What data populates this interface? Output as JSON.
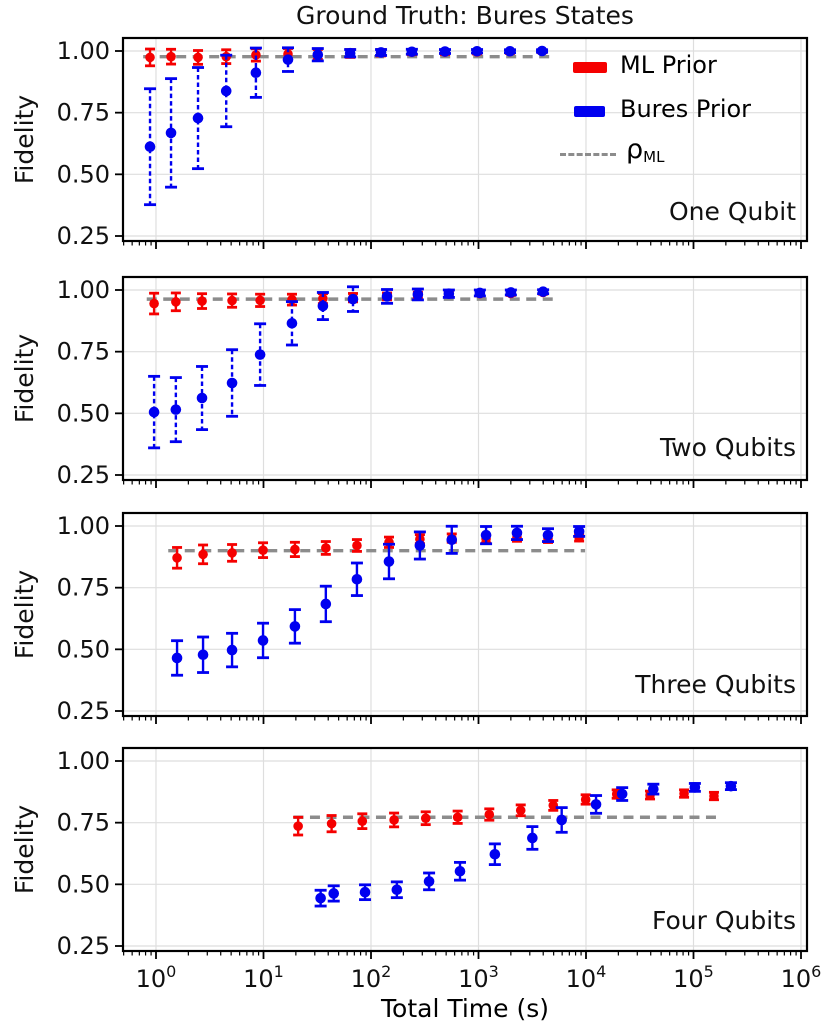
{
  "title": "Ground Truth: Bures States",
  "xlabel": "Total Time (s)",
  "ylabel": "Fidelity",
  "legend": {
    "ml_label": "ML Prior",
    "bures_label": "Bures Prior",
    "rho_label": "ρ",
    "rho_sub": "ML"
  },
  "colors": {
    "red": "#f50000",
    "blue": "#0000f0",
    "rho": "#8c8c8c",
    "grid": "#dedede",
    "axis": "#000000"
  },
  "axes": {
    "x_exponents": [
      0,
      1,
      2,
      3,
      4,
      5,
      6
    ],
    "x_tick_base": "10",
    "ytick_labels": [
      "1.00",
      "0.75",
      "0.50",
      "0.25"
    ],
    "ytick_values": [
      1.0,
      0.75,
      0.5,
      0.25
    ],
    "ylim": [
      0.23,
      1.053
    ],
    "xlim_log10": [
      -0.307,
      6.056
    ],
    "grid": true
  },
  "chart_data": [
    {
      "type": "scatter",
      "label": "One Qubit",
      "rho_ml": 0.977,
      "rho_span": [
        0.76,
        5100
      ],
      "series": [
        {
          "name": "ML Prior",
          "color_key": "red",
          "dashed_err": false,
          "x": [
            0.88,
            1.38,
            2.46,
            4.5,
            8.5,
            16.9,
            32,
            64,
            124,
            240,
            488,
            969,
            1963,
            3900
          ],
          "y": [
            0.974,
            0.977,
            0.974,
            0.977,
            0.984,
            0.988,
            0.986,
            0.99,
            0.993,
            0.995,
            0.995,
            0.996,
            0.997,
            0.999
          ],
          "err": [
            0.034,
            0.03,
            0.028,
            0.028,
            0.025,
            0.022,
            0.02,
            0.016,
            0.013,
            0.01,
            0.009,
            0.008,
            0.007,
            0.006
          ]
        },
        {
          "name": "Bures Prior",
          "color_key": "blue",
          "dashed_err": true,
          "x": [
            0.88,
            1.38,
            2.46,
            4.5,
            8.5,
            16.9,
            32,
            64,
            124,
            240,
            488,
            969,
            1963,
            3900
          ],
          "y": [
            0.612,
            0.668,
            0.728,
            0.838,
            0.912,
            0.965,
            0.985,
            0.991,
            0.994,
            0.997,
            0.998,
            0.999,
            0.999,
            1.0
          ],
          "err": [
            0.235,
            0.22,
            0.205,
            0.145,
            0.1,
            0.048,
            0.025,
            0.015,
            0.012,
            0.01,
            0.008,
            0.007,
            0.006,
            0.005
          ]
        }
      ]
    },
    {
      "type": "scatter",
      "label": "Two Qubits",
      "rho_ml": 0.963,
      "rho_span": [
        0.82,
        4950
      ],
      "series": [
        {
          "name": "ML Prior",
          "color_key": "red",
          "dashed_err": false,
          "x": [
            0.96,
            1.53,
            2.68,
            5.1,
            9.3,
            18.4,
            35.7,
            68,
            141,
            273,
            530,
            1030,
            2000,
            3990
          ],
          "y": [
            0.945,
            0.952,
            0.955,
            0.957,
            0.958,
            0.961,
            0.965,
            0.969,
            0.974,
            0.979,
            0.983,
            0.985,
            0.986,
            0.99
          ],
          "err": [
            0.042,
            0.036,
            0.03,
            0.027,
            0.025,
            0.022,
            0.02,
            0.017,
            0.014,
            0.012,
            0.01,
            0.009,
            0.008,
            0.007
          ]
        },
        {
          "name": "Bures Prior",
          "color_key": "blue",
          "dashed_err": true,
          "x": [
            0.96,
            1.53,
            2.68,
            5.1,
            9.3,
            18.4,
            35.7,
            68,
            141,
            273,
            530,
            1030,
            2000,
            3990
          ],
          "y": [
            0.505,
            0.515,
            0.562,
            0.623,
            0.738,
            0.865,
            0.935,
            0.963,
            0.974,
            0.982,
            0.985,
            0.988,
            0.99,
            0.993
          ],
          "err": [
            0.145,
            0.13,
            0.128,
            0.135,
            0.125,
            0.088,
            0.055,
            0.05,
            0.028,
            0.022,
            0.015,
            0.012,
            0.01,
            0.008
          ]
        }
      ]
    },
    {
      "type": "scatter",
      "label": "Three Qubits",
      "rho_ml": 0.9,
      "rho_span": [
        1.3,
        9800
      ],
      "series": [
        {
          "name": "ML Prior",
          "color_key": "red",
          "dashed_err": false,
          "x": [
            1.57,
            2.74,
            5.1,
            9.9,
            19.6,
            38,
            74,
            147,
            285,
            564,
            1176,
            2280,
            4430,
            8630
          ],
          "y": [
            0.871,
            0.885,
            0.891,
            0.902,
            0.905,
            0.911,
            0.921,
            0.934,
            0.947,
            0.951,
            0.948,
            0.953,
            0.948,
            0.953
          ],
          "err": [
            0.042,
            0.038,
            0.034,
            0.03,
            0.029,
            0.026,
            0.024,
            0.021,
            0.018,
            0.017,
            0.016,
            0.015,
            0.015,
            0.014
          ]
        },
        {
          "name": "Bures Prior",
          "color_key": "blue",
          "dashed_err": false,
          "x": [
            1.57,
            2.74,
            5.1,
            9.9,
            19.6,
            38,
            74,
            147,
            285,
            564,
            1176,
            2280,
            4430,
            8630
          ],
          "y": [
            0.465,
            0.478,
            0.497,
            0.536,
            0.593,
            0.684,
            0.784,
            0.856,
            0.921,
            0.944,
            0.963,
            0.972,
            0.963,
            0.978
          ],
          "err": [
            0.07,
            0.072,
            0.068,
            0.07,
            0.068,
            0.072,
            0.066,
            0.07,
            0.055,
            0.055,
            0.035,
            0.027,
            0.026,
            0.02
          ]
        }
      ]
    },
    {
      "type": "scatter",
      "label": "Four Qubits",
      "rho_ml": 0.772,
      "rho_span": [
        19,
        162000
      ],
      "series": [
        {
          "name": "ML Prior",
          "color_key": "red",
          "dashed_err": false,
          "x": [
            21,
            43,
            83,
            164,
            323,
            640,
            1260,
            2470,
            4960,
            9930,
            19300,
            39400,
            81700,
            155000
          ],
          "y": [
            0.736,
            0.746,
            0.756,
            0.761,
            0.768,
            0.772,
            0.783,
            0.8,
            0.82,
            0.844,
            0.866,
            0.862,
            0.868,
            0.858
          ],
          "err": [
            0.036,
            0.033,
            0.03,
            0.028,
            0.026,
            0.025,
            0.023,
            0.022,
            0.02,
            0.019,
            0.017,
            0.016,
            0.015,
            0.015
          ]
        },
        {
          "name": "Bures Prior",
          "color_key": "blue",
          "dashed_err": false,
          "x": [
            34,
            45,
            88,
            174,
            347,
            673,
            1420,
            3170,
            5940,
            12400,
            21700,
            42300,
            103000,
            223000
          ],
          "y": [
            0.444,
            0.463,
            0.468,
            0.478,
            0.512,
            0.553,
            0.622,
            0.688,
            0.761,
            0.824,
            0.866,
            0.886,
            0.893,
            0.898
          ],
          "err": [
            0.032,
            0.031,
            0.03,
            0.032,
            0.034,
            0.036,
            0.042,
            0.046,
            0.05,
            0.036,
            0.026,
            0.02,
            0.016,
            0.014
          ]
        }
      ]
    }
  ]
}
